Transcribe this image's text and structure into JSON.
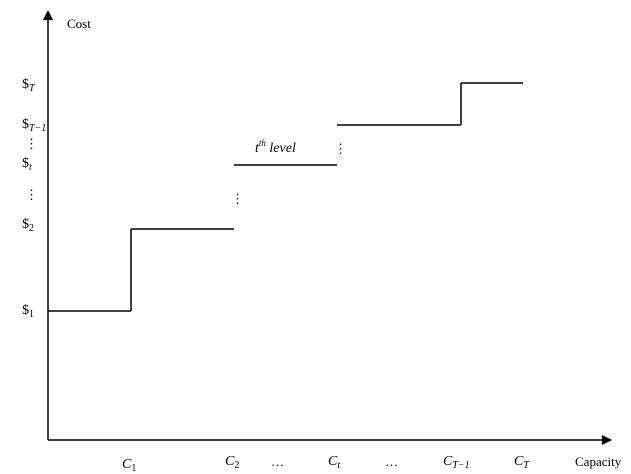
{
  "chart_data": {
    "type": "line",
    "title": "",
    "xlabel": "Capacity",
    "ylabel": "Cost",
    "grid": false,
    "legend": "none",
    "step": true,
    "x_ticks": [
      {
        "base": "C",
        "sub": "1"
      },
      {
        "base": "C",
        "sub": "2"
      },
      {
        "base": "…",
        "sub": ""
      },
      {
        "base": "C",
        "sub": "t"
      },
      {
        "base": "…",
        "sub": ""
      },
      {
        "base": "C",
        "sub": "T−1"
      },
      {
        "base": "C",
        "sub": "T"
      }
    ],
    "y_ticks": [
      {
        "base": "$",
        "sub": "T"
      },
      {
        "base": "$",
        "sub": "T−1"
      },
      {
        "base": "⋮",
        "sub": ""
      },
      {
        "base": "$",
        "sub": "t"
      },
      {
        "base": "⋮",
        "sub": ""
      },
      {
        "base": "$",
        "sub": "2"
      },
      {
        "base": "$",
        "sub": "1"
      }
    ],
    "segments": [
      {
        "from": "0",
        "to": "C1",
        "level": "$1"
      },
      {
        "from": "C1",
        "to": "C2",
        "level": "$2"
      },
      {
        "from": "C2",
        "to": "Ct",
        "level": "$t"
      },
      {
        "from": "Ct",
        "to": "CT−1",
        "level": "$T−1"
      },
      {
        "from": "CT−1",
        "to": "CT",
        "level": "$T"
      }
    ],
    "annotations": [
      {
        "base": "t",
        "sup": "th",
        "rest": " level"
      },
      {
        "text": "⋮"
      },
      {
        "text": "⋮"
      }
    ]
  }
}
